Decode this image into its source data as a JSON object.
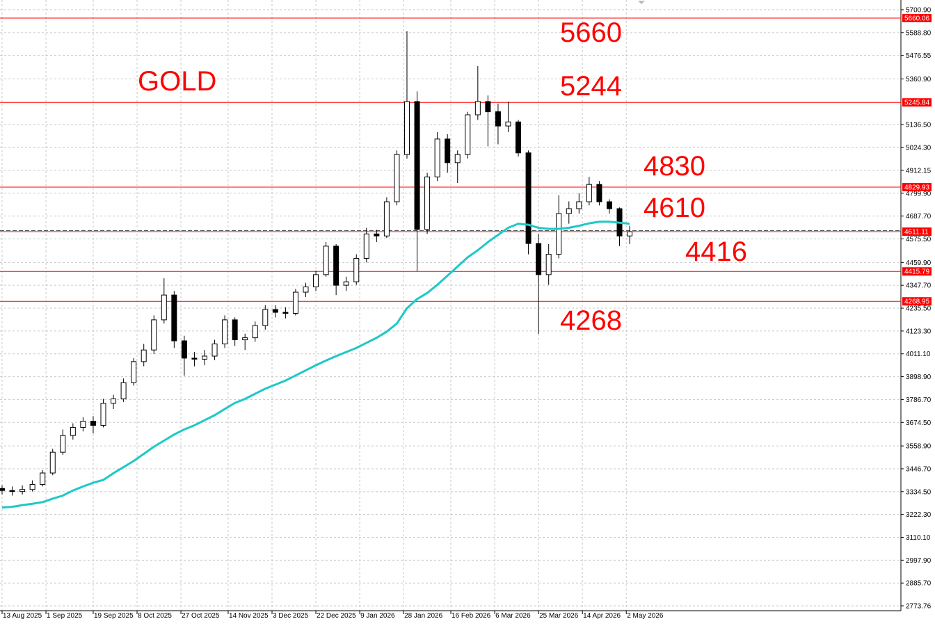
{
  "chart_data": {
    "type": "candlestick",
    "title": "GOLD",
    "annotations": [
      "5660",
      "5244",
      "4830",
      "4610",
      "4416",
      "4268"
    ],
    "x": [
      0,
      3,
      6,
      9,
      12,
      15,
      18,
      21,
      24,
      27,
      30,
      33,
      36,
      39,
      42,
      45,
      48,
      51,
      54,
      57,
      60,
      63,
      66,
      69,
      72,
      75,
      78,
      81,
      84,
      87,
      90,
      93,
      96,
      99,
      102,
      105,
      108,
      111,
      114,
      117,
      120,
      123,
      126,
      129,
      132,
      135,
      138,
      141,
      144,
      147,
      150,
      153,
      156,
      159,
      162,
      165,
      168,
      171,
      174,
      177,
      180,
      183,
      186
    ],
    "open": [
      3350,
      3340,
      3335,
      3345,
      3370,
      3426,
      3528,
      3610,
      3650,
      3680,
      3660,
      3768,
      3790,
      3870,
      3973,
      4030,
      4178,
      4300,
      4075,
      3990,
      3985,
      4000,
      4060,
      4178,
      4080,
      4090,
      4150,
      4229,
      4215,
      4210,
      4314,
      4340,
      4400,
      4540,
      4348,
      4365,
      4480,
      4600,
      4590,
      4758,
      4990,
      5250,
      4622,
      4880,
      5066,
      4950,
      4990,
      5185,
      5250,
      5200,
      5130,
      5150,
      4998,
      4553,
      4400,
      4500,
      4700,
      4724,
      4758,
      4843,
      4758,
      4724,
      4590
    ],
    "high": [
      3365,
      3360,
      3365,
      3390,
      3440,
      3545,
      3640,
      3670,
      3700,
      3705,
      3790,
      3810,
      3890,
      3990,
      4060,
      4200,
      4382,
      4320,
      4100,
      4020,
      4030,
      4080,
      4200,
      4190,
      4110,
      4170,
      4250,
      4250,
      4240,
      4330,
      4360,
      4420,
      4560,
      4550,
      4390,
      4500,
      4630,
      4620,
      4780,
      5010,
      5595,
      5300,
      4900,
      5100,
      5090,
      5010,
      5200,
      5424,
      5280,
      5240,
      5250,
      5160,
      5010,
      4600,
      4550,
      4790,
      4760,
      4800,
      4880,
      4860,
      4770,
      4730,
      4640
    ],
    "low": [
      3320,
      3315,
      3320,
      3335,
      3360,
      3415,
      3515,
      3590,
      3630,
      3620,
      3650,
      3740,
      3775,
      3855,
      3950,
      4010,
      4160,
      4040,
      3904,
      3950,
      3955,
      3980,
      4040,
      4050,
      4030,
      4070,
      4130,
      4190,
      4185,
      4200,
      4290,
      4320,
      4390,
      4300,
      4320,
      4350,
      4460,
      4560,
      4580,
      4740,
      4970,
      4417,
      4600,
      4860,
      4900,
      4850,
      4970,
      5160,
      5030,
      5040,
      5100,
      4980,
      4500,
      4109,
      4350,
      4480,
      4650,
      4700,
      4740,
      4740,
      4700,
      4540,
      4550
    ],
    "close": [
      3340,
      3335,
      3345,
      3370,
      3426,
      3528,
      3610,
      3650,
      3680,
      3660,
      3768,
      3790,
      3870,
      3973,
      4030,
      4178,
      4300,
      4075,
      3990,
      3985,
      4000,
      4060,
      4178,
      4080,
      4090,
      4150,
      4229,
      4215,
      4210,
      4314,
      4340,
      4400,
      4540,
      4348,
      4365,
      4480,
      4600,
      4590,
      4758,
      4990,
      5250,
      4622,
      4880,
      5066,
      4950,
      4990,
      5185,
      5250,
      5200,
      5130,
      5150,
      4998,
      4553,
      4400,
      4500,
      4700,
      4724,
      4758,
      4843,
      4758,
      4724,
      4590,
      4611
    ],
    "ma": [
      3256,
      3260,
      3268,
      3275,
      3283,
      3300,
      3315,
      3340,
      3360,
      3378,
      3392,
      3425,
      3455,
      3485,
      3520,
      3555,
      3585,
      3615,
      3640,
      3660,
      3685,
      3710,
      3740,
      3770,
      3790,
      3815,
      3840,
      3860,
      3880,
      3905,
      3930,
      3955,
      3978,
      4000,
      4020,
      4040,
      4065,
      4090,
      4120,
      4160,
      4235,
      4280,
      4310,
      4350,
      4395,
      4440,
      4485,
      4520,
      4560,
      4595,
      4630,
      4650,
      4645,
      4630,
      4625,
      4625,
      4630,
      4640,
      4652,
      4660,
      4660,
      4655,
      4650
    ],
    "ma_color": "#1ec8c8",
    "candle_color": "#000000",
    "levels": [
      {
        "value": 5660.06,
        "color": "#ff0000"
      },
      {
        "value": 5245.84,
        "color": "#ff0000"
      },
      {
        "value": 4829.93,
        "color": "#ff0000"
      },
      {
        "value": 4611.11,
        "color": "#ff0000",
        "dashed": true
      },
      {
        "value": 4415.79,
        "color": "#ff0000"
      },
      {
        "value": 4268.95,
        "color": "#ff0000"
      }
    ],
    "xlim": [
      -0.62,
      266.4
    ],
    "xticks": [
      {
        "value": 0,
        "label": "13 Aug 2025"
      },
      {
        "value": 13,
        "label": "1 Sep 2025"
      },
      {
        "value": 27,
        "label": "19 Sep 2025"
      },
      {
        "value": 40,
        "label": "8 Oct 2025"
      },
      {
        "value": 53,
        "label": "27 Oct 2025"
      },
      {
        "value": 67,
        "label": "14 Nov 2025"
      },
      {
        "value": 80,
        "label": "3 Dec 2025"
      },
      {
        "value": 93,
        "label": "22 Dec 2025"
      },
      {
        "value": 106,
        "label": "9 Jan 2026"
      },
      {
        "value": 119,
        "label": "28 Jan 2026"
      },
      {
        "value": 133,
        "label": "16 Feb 2026"
      },
      {
        "value": 146,
        "label": "6 Mar 2026"
      },
      {
        "value": 159,
        "label": "25 Mar 2026"
      },
      {
        "value": 172,
        "label": "14 Apr 2026"
      },
      {
        "value": 185,
        "label": "2 May 2026"
      }
    ],
    "ylim": [
      2749.8,
      5748.7
    ],
    "yticks": [
      {
        "value": 5700.9,
        "label": "5700.90"
      },
      {
        "value": 5588.8,
        "label": "5588.80"
      },
      5476.55,
      {
        "value": 5360.9,
        "label": "5360.90"
      },
      {
        "value": 5136.5,
        "label": "5136.50"
      },
      {
        "value": 5024.3,
        "label": "5024.30"
      },
      4912.15,
      {
        "value": 4799.9,
        "label": "4799.90"
      },
      {
        "value": 4687.7,
        "label": "4687.70"
      },
      {
        "value": 4575.5,
        "label": "4575.50"
      },
      {
        "value": 4459.9,
        "label": "4459.90"
      },
      {
        "value": 4347.7,
        "label": "4347.70"
      },
      {
        "value": 4235.5,
        "label": "4235.50"
      },
      {
        "value": 4123.3,
        "label": "4123.30"
      },
      {
        "value": 4011.1,
        "label": "4011.10"
      },
      {
        "value": 3898.9,
        "label": "3898.90"
      },
      {
        "value": 3786.7,
        "label": "3786.70"
      },
      {
        "value": 3674.5,
        "label": "3674.50"
      },
      {
        "value": 3558.9,
        "label": "3558.90"
      },
      {
        "value": 3446.7,
        "label": "3446.70"
      },
      {
        "value": 3334.5,
        "label": "3334.50"
      },
      {
        "value": 3222.3,
        "label": "3222.30"
      },
      {
        "value": 3110.1,
        "label": "3110.10"
      },
      {
        "value": 2997.9,
        "label": "2997.90"
      },
      {
        "value": 2885.7,
        "label": "2885.70"
      },
      2773.76
    ],
    "grid": true
  }
}
